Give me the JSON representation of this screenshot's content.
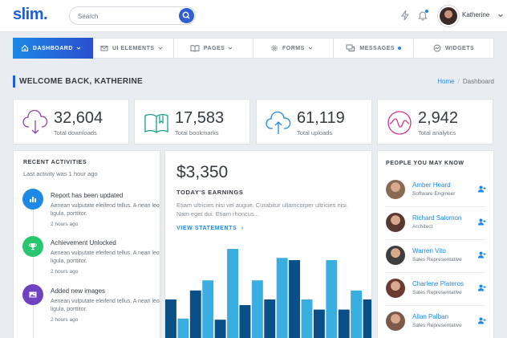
{
  "header": {
    "logo": "slim",
    "logo_dot": ".",
    "search_placeholder": "Search",
    "user_name": "Katherine"
  },
  "nav": [
    {
      "label": "DASHBOARD",
      "icon": "home-icon",
      "chevron": true,
      "active": true
    },
    {
      "label": "UI ELEMENTS",
      "icon": "envelope-icon",
      "chevron": true
    },
    {
      "label": "PAGES",
      "icon": "book-icon",
      "chevron": true
    },
    {
      "label": "FORMS",
      "icon": "gear-icon",
      "chevron": true
    },
    {
      "label": "MESSAGES",
      "icon": "chat-icon",
      "dot": true
    },
    {
      "label": "WIDGETS",
      "icon": "gauge-icon"
    }
  ],
  "page": {
    "title": "WELCOME BACK, KATHERINE",
    "breadcrumb_home": "Home",
    "breadcrumb_sep": "/",
    "breadcrumb_current": "Dashboard"
  },
  "stats": [
    {
      "value": "32,604",
      "label": "Total downloads",
      "icon": "cloud-download-icon",
      "color": "#8e44ad"
    },
    {
      "value": "17,583",
      "label": "Total bookmarks",
      "icon": "book-open-icon",
      "color": "#16a085"
    },
    {
      "value": "61,119",
      "label": "Total uploads",
      "icon": "cloud-upload-icon",
      "color": "#1e88e5"
    },
    {
      "value": "2,942",
      "label": "Total analytics",
      "icon": "pulse-icon",
      "color": "#d63384"
    }
  ],
  "activities": {
    "title": "RECENT ACTIVITIES",
    "subtitle": "Last activity was 1 hour ago",
    "items": [
      {
        "title": "Report has been updated",
        "text": "Aenean vulputate eleifend tellus. A nean leo ligula, porttitor.",
        "time": "2 hours ago",
        "icon": "bar-chart-icon",
        "color": "#1e88e5"
      },
      {
        "title": "Achievement Unlocked",
        "text": "Aenean vulputate eleifend tellus. A nean leo ligula, porttitor.",
        "time": "2 hours ago",
        "icon": "trophy-icon",
        "color": "#28c76f"
      },
      {
        "title": "Added new images",
        "text": "Aenean vulputate eleifend tellus. A nean leo ligula, porttitor.",
        "time": "2 hours ago",
        "icon": "image-icon",
        "color": "#6f42c1"
      }
    ]
  },
  "earnings": {
    "value": "$3,350",
    "title": "TODAY'S EARNINGS",
    "text": "Etiam ultricies nisi vel augue. Curabitur ullamcorper ultricies nisi. Nam eget dui. Etiam rhoncus...",
    "link": "VIEW STATEMENTS",
    "link_arrow": "›"
  },
  "chart_data": {
    "type": "bar",
    "series": [
      {
        "values": [
          3.5,
          1.8,
          4.3,
          5.2,
          1.7,
          8.0,
          3.0,
          5.2,
          3.5,
          7.2,
          7.0,
          3.5,
          2.6,
          7.0,
          2.6,
          4.3,
          3.5
        ]
      }
    ],
    "colors": [
      "#0a4f86",
      "#3aaee0"
    ],
    "ylim": [
      0,
      9
    ]
  },
  "people": {
    "title": "PEOPLE YOU MAY KNOW",
    "items": [
      {
        "name": "Amber Heard",
        "role": "Software Engineer",
        "color": "#8a6a52"
      },
      {
        "name": "Richard Salomon",
        "role": "Architect",
        "color": "#5a3a30"
      },
      {
        "name": "Warren Vito",
        "role": "Sales Representative",
        "color": "#3e3e3e"
      },
      {
        "name": "Charlene Plateros",
        "role": "Sales Representative",
        "color": "#6b3b32"
      },
      {
        "name": "Allan Palban",
        "role": "Sales Representative",
        "color": "#7a5a48"
      }
    ]
  }
}
